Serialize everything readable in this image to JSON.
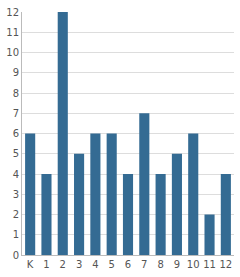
{
  "chart_data": {
    "type": "bar",
    "categories": [
      "K",
      "1",
      "2",
      "3",
      "4",
      "5",
      "6",
      "7",
      "8",
      "9",
      "10",
      "11",
      "12"
    ],
    "values": [
      6,
      4,
      12,
      5,
      6,
      6,
      4,
      7,
      4,
      5,
      6,
      2,
      4
    ],
    "color": "#346b93",
    "ylim": [
      0,
      12
    ],
    "yticks": [
      0,
      1,
      2,
      3,
      4,
      5,
      6,
      7,
      8,
      9,
      10,
      11,
      12
    ],
    "grid": true
  }
}
